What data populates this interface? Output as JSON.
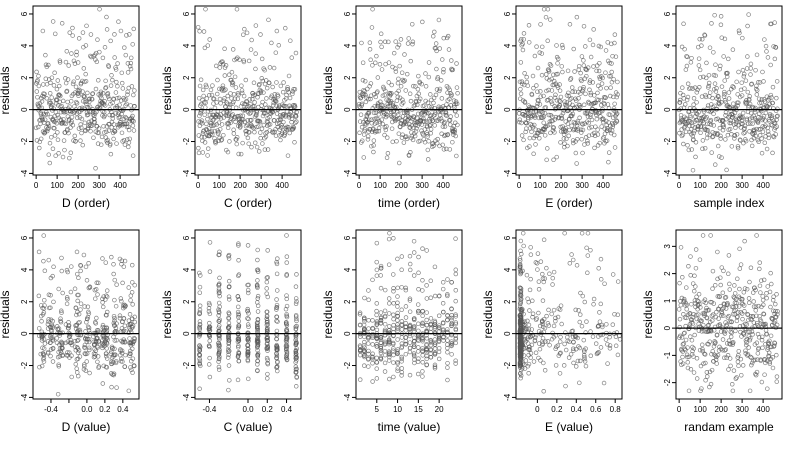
{
  "colors": {
    "background": "#ffffff",
    "frame": "#000000",
    "points": "#555555"
  },
  "chart_data": [
    {
      "type": "scatter",
      "xlabel": "D (order)",
      "ylabel": "residuals",
      "xlim": [
        -15,
        490
      ],
      "ylim": [
        -4.1,
        6.5
      ],
      "xticks": [
        0,
        100,
        200,
        300,
        400
      ],
      "yticks": [
        -4,
        -2,
        0,
        2,
        4,
        6
      ],
      "reference_line_y": 0,
      "n_points": 470,
      "x_kind": "index",
      "y_dist": "skew"
    },
    {
      "type": "scatter",
      "xlabel": "C (order)",
      "ylabel": "residuals",
      "xlim": [
        -15,
        490
      ],
      "ylim": [
        -4.1,
        6.5
      ],
      "xticks": [
        0,
        100,
        200,
        300,
        400
      ],
      "yticks": [
        -4,
        -2,
        0,
        2,
        4,
        6
      ],
      "reference_line_y": 0,
      "n_points": 470,
      "x_kind": "index",
      "y_dist": "skew"
    },
    {
      "type": "scatter",
      "xlabel": "time (order)",
      "ylabel": "residuals",
      "xlim": [
        -15,
        490
      ],
      "ylim": [
        -4.1,
        6.5
      ],
      "xticks": [
        0,
        100,
        200,
        300,
        400
      ],
      "yticks": [
        -4,
        -2,
        0,
        2,
        4,
        6
      ],
      "reference_line_y": 0,
      "n_points": 470,
      "x_kind": "index",
      "y_dist": "skew"
    },
    {
      "type": "scatter",
      "xlabel": "E (order)",
      "ylabel": "residuals",
      "xlim": [
        -15,
        490
      ],
      "ylim": [
        -4.1,
        6.5
      ],
      "xticks": [
        0,
        100,
        200,
        300,
        400
      ],
      "yticks": [
        -4,
        -2,
        0,
        2,
        4,
        6
      ],
      "reference_line_y": 0,
      "n_points": 470,
      "x_kind": "index",
      "y_dist": "skew"
    },
    {
      "type": "scatter",
      "xlabel": "sample index",
      "ylabel": "residuals",
      "xlim": [
        -15,
        490
      ],
      "ylim": [
        -4.1,
        6.5
      ],
      "xticks": [
        0,
        100,
        200,
        300,
        400
      ],
      "yticks": [
        -4,
        -2,
        0,
        2,
        4,
        6
      ],
      "reference_line_y": 0,
      "n_points": 470,
      "x_kind": "index",
      "y_dist": "skew"
    },
    {
      "type": "scatter",
      "xlabel": "D (value)",
      "ylabel": "residuals",
      "xlim": [
        -0.6,
        0.58
      ],
      "ylim": [
        -4.1,
        6.5
      ],
      "xticks": [
        -0.4,
        -0.2,
        0.0,
        0.2,
        0.4
      ],
      "xtick_labels": [
        "-0.4",
        "",
        "0.0",
        "0.2",
        "0.4"
      ],
      "yticks": [
        -4,
        -2,
        0,
        2,
        4,
        6
      ],
      "reference_line_y": 0,
      "n_points": 470,
      "x_kind": "grid",
      "x_levels": [
        -0.5,
        -0.4,
        -0.3,
        -0.2,
        -0.1,
        0.0,
        0.1,
        0.2,
        0.3,
        0.4,
        0.5
      ],
      "x_jitter": 0.035,
      "y_dist": "skew"
    },
    {
      "type": "scatter",
      "xlabel": "C (value)",
      "ylabel": "residuals",
      "xlim": [
        -0.55,
        0.55
      ],
      "ylim": [
        -4.1,
        6.5
      ],
      "xticks": [
        -0.4,
        0.0,
        0.2,
        0.4
      ],
      "xtick_labels": [
        "-0.4",
        "0.0",
        "0.2",
        "0.4"
      ],
      "yticks": [
        -4,
        -2,
        0,
        2,
        4,
        6
      ],
      "reference_line_y": 0,
      "n_points": 470,
      "x_kind": "grid",
      "x_levels": [
        -0.5,
        -0.4,
        -0.3,
        -0.2,
        -0.1,
        0.0,
        0.1,
        0.2,
        0.3,
        0.4,
        0.5
      ],
      "x_jitter": 0.006,
      "y_dist": "skew"
    },
    {
      "type": "scatter",
      "xlabel": "time (value)",
      "ylabel": "residuals",
      "xlim": [
        0,
        25.5
      ],
      "ylim": [
        -4.1,
        6.5
      ],
      "xticks": [
        5,
        10,
        15,
        20
      ],
      "yticks": [
        -4,
        -2,
        0,
        2,
        4,
        6
      ],
      "reference_line_y": 0,
      "n_points": 470,
      "x_kind": "grid",
      "x_levels": [
        1,
        2,
        3,
        4,
        5,
        6,
        7,
        8,
        9,
        10,
        11,
        12,
        13,
        14,
        15,
        16,
        17,
        18,
        19,
        20,
        21,
        22,
        23,
        24
      ],
      "x_jitter": 0.05,
      "y_dist": "skew"
    },
    {
      "type": "scatter",
      "xlabel": "E (value)",
      "ylabel": "residuals",
      "xlim": [
        -0.22,
        0.87
      ],
      "ylim": [
        -4.1,
        6.5
      ],
      "xticks": [
        0.0,
        0.2,
        0.4,
        0.6,
        0.8
      ],
      "yticks": [
        -4,
        -2,
        0,
        2,
        4,
        6
      ],
      "reference_line_y": 0,
      "n_points": 470,
      "x_kind": "skewed",
      "x_range": [
        -0.18,
        0.85
      ],
      "y_dist": "skew"
    },
    {
      "type": "scatter",
      "xlabel": "randam example",
      "ylabel": "residuals",
      "xlim": [
        -15,
        490
      ],
      "ylim": [
        -2.6,
        3.6
      ],
      "xticks": [
        0,
        100,
        200,
        300,
        400
      ],
      "yticks": [
        -2,
        -1,
        0,
        1,
        2,
        3
      ],
      "reference_line_y": 0,
      "n_points": 470,
      "x_kind": "index",
      "y_dist": "normal"
    }
  ]
}
